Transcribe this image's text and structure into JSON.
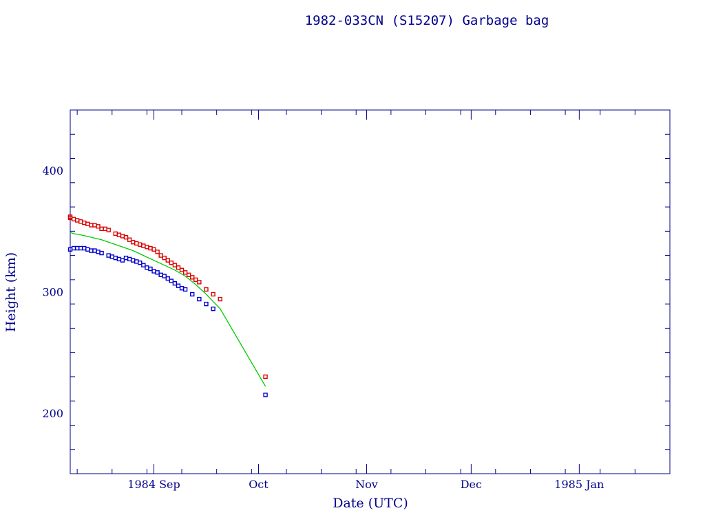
{
  "chart_data": {
    "type": "scatter",
    "title": "1982-033CN (S15207) Garbage bag",
    "xlabel": "Date (UTC)",
    "ylabel": "Height (km)",
    "x_axis": "date",
    "xlim": [
      "1984-08-08",
      "1985-01-27"
    ],
    "ylim": [
      150,
      450
    ],
    "y_ticks": [
      200,
      300,
      400
    ],
    "x_ticks": [
      {
        "date": "1984-09-01",
        "label": "1984 Sep"
      },
      {
        "date": "1984-10-01",
        "label": "Oct"
      },
      {
        "date": "1984-11-01",
        "label": "Nov"
      },
      {
        "date": "1984-12-01",
        "label": "Dec"
      },
      {
        "date": "1985-01-01",
        "label": "1985 Jan"
      }
    ],
    "grid": false,
    "colors": {
      "apogee": "#dd0000",
      "perigee": "#0000cc",
      "mean": "#00cc00",
      "axis": "#00008b"
    },
    "series": [
      {
        "style": "square-markers",
        "color": "#dd0000",
        "points": [
          [
            "1984-08-08",
            362
          ],
          [
            "1984-08-08",
            361
          ],
          [
            "1984-08-09",
            360
          ],
          [
            "1984-08-10",
            359
          ],
          [
            "1984-08-11",
            358
          ],
          [
            "1984-08-12",
            357
          ],
          [
            "1984-08-13",
            356
          ],
          [
            "1984-08-14",
            355
          ],
          [
            "1984-08-15",
            355
          ],
          [
            "1984-08-16",
            354
          ],
          [
            "1984-08-17",
            352
          ],
          [
            "1984-08-18",
            352
          ],
          [
            "1984-08-19",
            351
          ],
          [
            "1984-08-21",
            348
          ],
          [
            "1984-08-22",
            347
          ],
          [
            "1984-08-23",
            346
          ],
          [
            "1984-08-24",
            345
          ],
          [
            "1984-08-25",
            343
          ],
          [
            "1984-08-26",
            341
          ],
          [
            "1984-08-27",
            340
          ],
          [
            "1984-08-28",
            339
          ],
          [
            "1984-08-29",
            338
          ],
          [
            "1984-08-30",
            337
          ],
          [
            "1984-08-31",
            336
          ],
          [
            "1984-09-01",
            335
          ],
          [
            "1984-09-02",
            333
          ],
          [
            "1984-09-03",
            330
          ],
          [
            "1984-09-04",
            328
          ],
          [
            "1984-09-05",
            326
          ],
          [
            "1984-09-06",
            324
          ],
          [
            "1984-09-07",
            322
          ],
          [
            "1984-09-08",
            320
          ],
          [
            "1984-09-09",
            318
          ],
          [
            "1984-09-10",
            316
          ],
          [
            "1984-09-11",
            314
          ],
          [
            "1984-09-12",
            312
          ],
          [
            "1984-09-13",
            310
          ],
          [
            "1984-09-14",
            308
          ],
          [
            "1984-09-16",
            302
          ],
          [
            "1984-09-18",
            298
          ],
          [
            "1984-09-20",
            294
          ],
          [
            "1984-10-03",
            230
          ]
        ]
      },
      {
        "style": "square-markers",
        "color": "#0000cc",
        "points": [
          [
            "1984-08-08",
            335
          ],
          [
            "1984-08-09",
            336
          ],
          [
            "1984-08-10",
            336
          ],
          [
            "1984-08-11",
            336
          ],
          [
            "1984-08-12",
            336
          ],
          [
            "1984-08-13",
            335
          ],
          [
            "1984-08-14",
            334
          ],
          [
            "1984-08-15",
            334
          ],
          [
            "1984-08-16",
            333
          ],
          [
            "1984-08-17",
            332
          ],
          [
            "1984-08-19",
            330
          ],
          [
            "1984-08-20",
            329
          ],
          [
            "1984-08-21",
            328
          ],
          [
            "1984-08-22",
            327
          ],
          [
            "1984-08-23",
            326
          ],
          [
            "1984-08-24",
            328
          ],
          [
            "1984-08-25",
            327
          ],
          [
            "1984-08-26",
            326
          ],
          [
            "1984-08-27",
            325
          ],
          [
            "1984-08-28",
            324
          ],
          [
            "1984-08-29",
            322
          ],
          [
            "1984-08-30",
            320
          ],
          [
            "1984-08-31",
            319
          ],
          [
            "1984-09-01",
            317
          ],
          [
            "1984-09-02",
            316
          ],
          [
            "1984-09-03",
            314
          ],
          [
            "1984-09-04",
            313
          ],
          [
            "1984-09-05",
            311
          ],
          [
            "1984-09-06",
            309
          ],
          [
            "1984-09-07",
            307
          ],
          [
            "1984-09-08",
            305
          ],
          [
            "1984-09-09",
            303
          ],
          [
            "1984-09-10",
            302
          ],
          [
            "1984-09-12",
            298
          ],
          [
            "1984-09-14",
            294
          ],
          [
            "1984-09-16",
            290
          ],
          [
            "1984-09-18",
            286
          ],
          [
            "1984-10-03",
            215
          ]
        ]
      },
      {
        "style": "line",
        "color": "#00cc00",
        "points": [
          [
            "1984-08-08",
            349
          ],
          [
            "1984-08-09",
            348
          ],
          [
            "1984-08-11",
            347
          ],
          [
            "1984-08-14",
            345
          ],
          [
            "1984-08-17",
            343
          ],
          [
            "1984-08-20",
            340
          ],
          [
            "1984-08-23",
            337
          ],
          [
            "1984-08-26",
            334
          ],
          [
            "1984-08-29",
            330
          ],
          [
            "1984-09-01",
            326
          ],
          [
            "1984-09-04",
            322
          ],
          [
            "1984-09-07",
            318
          ],
          [
            "1984-09-10",
            313
          ],
          [
            "1984-09-13",
            306
          ],
          [
            "1984-09-16",
            298
          ],
          [
            "1984-09-18",
            292
          ],
          [
            "1984-09-20",
            286
          ],
          [
            "1984-10-03",
            222
          ]
        ]
      }
    ]
  }
}
